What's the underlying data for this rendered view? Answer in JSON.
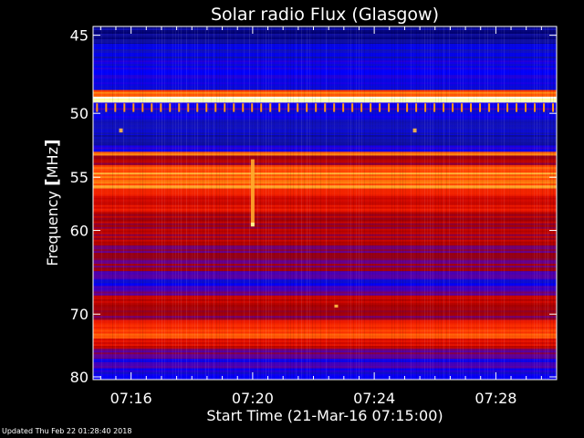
{
  "chart_data": {
    "type": "heatmap",
    "title": "Solar radio Flux (Glasgow)",
    "xlabel": "Start Time (21-Mar-16 07:15:00)",
    "ylabel_main": "Frequency ",
    "ylabel_unit": "MHz",
    "ylabel_bracket_left": "[",
    "ylabel_bracket_right": "]",
    "x_range": [
      "07:14:45",
      "07:30:00"
    ],
    "y_range_mhz": [
      44.5,
      80.5
    ],
    "y_scale": "reciprocal",
    "x_ticks": [
      {
        "time": "07:16",
        "label": "07:16"
      },
      {
        "time": "07:20",
        "label": "07:20"
      },
      {
        "time": "07:24",
        "label": "07:24"
      },
      {
        "time": "07:28",
        "label": "07:28"
      }
    ],
    "y_ticks": [
      {
        "mhz": 45,
        "label": "45"
      },
      {
        "mhz": 50,
        "label": "50"
      },
      {
        "mhz": 55,
        "label": "55"
      },
      {
        "mhz": 60,
        "label": "60"
      },
      {
        "mhz": 70,
        "label": "70"
      },
      {
        "mhz": 80,
        "label": "80"
      }
    ],
    "colormap": [
      "#00006e",
      "#1414b4",
      "#0000ff",
      "#64009b",
      "#a00000",
      "#dc0a00",
      "#ff3200",
      "#ff9614",
      "#ffff8c",
      "#ffffff"
    ],
    "frequency_bands": [
      {
        "from_mhz": 44.5,
        "to_mhz": 45.5,
        "level": 0.05
      },
      {
        "from_mhz": 45.5,
        "to_mhz": 46.5,
        "level": 0.16
      },
      {
        "from_mhz": 46.5,
        "to_mhz": 48.4,
        "level": 0.2
      },
      {
        "from_mhz": 48.4,
        "to_mhz": 48.85,
        "level": 0.7
      },
      {
        "from_mhz": 48.85,
        "to_mhz": 49.25,
        "level": 0.97
      },
      {
        "from_mhz": 49.25,
        "to_mhz": 49.8,
        "level": 0.25
      },
      {
        "from_mhz": 49.8,
        "to_mhz": 50.6,
        "level": 0.18
      },
      {
        "from_mhz": 50.6,
        "to_mhz": 51.6,
        "level": 0.14
      },
      {
        "from_mhz": 51.6,
        "to_mhz": 52.4,
        "level": 0.08
      },
      {
        "from_mhz": 52.4,
        "to_mhz": 52.9,
        "level": 0.22
      },
      {
        "from_mhz": 52.9,
        "to_mhz": 53.2,
        "level": 0.75
      },
      {
        "from_mhz": 53.2,
        "to_mhz": 54.0,
        "level": 0.45
      },
      {
        "from_mhz": 54.0,
        "to_mhz": 56.0,
        "level": 0.74
      },
      {
        "from_mhz": 56.0,
        "to_mhz": 58.2,
        "level": 0.58
      },
      {
        "from_mhz": 58.2,
        "to_mhz": 61.6,
        "level": 0.46
      },
      {
        "from_mhz": 61.6,
        "to_mhz": 64.5,
        "level": 0.4
      },
      {
        "from_mhz": 64.5,
        "to_mhz": 65.5,
        "level": 0.26
      },
      {
        "from_mhz": 65.5,
        "to_mhz": 66.3,
        "level": 0.18
      },
      {
        "from_mhz": 66.3,
        "to_mhz": 67.5,
        "level": 0.32
      },
      {
        "from_mhz": 67.5,
        "to_mhz": 69.0,
        "level": 0.5
      },
      {
        "from_mhz": 69.0,
        "to_mhz": 70.8,
        "level": 0.4
      },
      {
        "from_mhz": 70.8,
        "to_mhz": 72.0,
        "level": 0.6
      },
      {
        "from_mhz": 72.0,
        "to_mhz": 73.6,
        "level": 0.7
      },
      {
        "from_mhz": 73.6,
        "to_mhz": 75.2,
        "level": 0.55
      },
      {
        "from_mhz": 75.2,
        "to_mhz": 76.8,
        "level": 0.36
      },
      {
        "from_mhz": 76.8,
        "to_mhz": 78.5,
        "level": 0.26
      },
      {
        "from_mhz": 78.5,
        "to_mhz": 80.5,
        "level": 0.2
      }
    ],
    "bursts": [
      {
        "time": "07:20:00",
        "from_mhz": 53.5,
        "to_mhz": 59.5,
        "level": 0.8
      },
      {
        "time": "07:20:00",
        "from_mhz": 59.2,
        "to_mhz": 59.6,
        "level": 0.9
      },
      {
        "time": "07:15:40",
        "from_mhz": 51.1,
        "to_mhz": 51.4,
        "level": 0.82
      },
      {
        "time": "07:25:20",
        "from_mhz": 51.1,
        "to_mhz": 51.4,
        "level": 0.82
      },
      {
        "time": "07:22:45",
        "from_mhz": 68.7,
        "to_mhz": 69.1,
        "level": 0.82
      }
    ],
    "interference_comb": {
      "from_mhz": 49.3,
      "to_mhz": 49.9,
      "spacing_s": 18,
      "level": 0.78
    },
    "grid": false,
    "legend": "none"
  },
  "footer": {
    "updated": "Updated Thu Feb 22 01:28:40 2018"
  }
}
